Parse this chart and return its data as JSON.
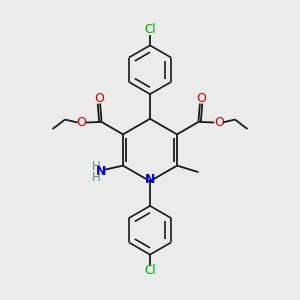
{
  "background_color": "#ebebeb",
  "bond_color": "#1a1a1a",
  "atom_colors": {
    "N": "#0000cc",
    "O": "#cc0000",
    "Cl": "#00aa00",
    "C": "#1a1a1a",
    "H": "#5c9090"
  },
  "figsize": [
    3.0,
    3.0
  ],
  "dpi": 100
}
